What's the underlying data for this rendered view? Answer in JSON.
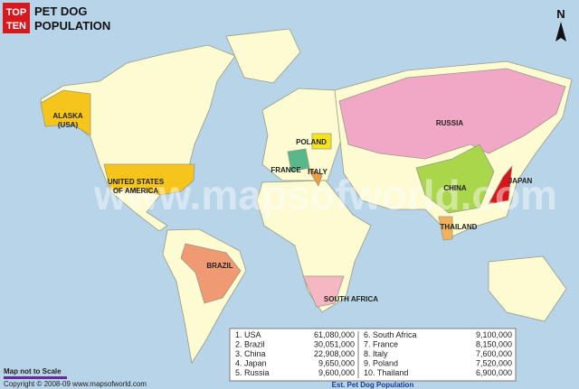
{
  "header": {
    "badge": [
      "TOP",
      "TEN"
    ],
    "title": [
      "PET DOG",
      "POPULATION"
    ]
  },
  "compass": "N",
  "watermark": "www.mapsofworld.com",
  "labels": {
    "alaska": [
      "ALASKA",
      "(USA)"
    ],
    "usa": [
      "UNITED STATES",
      "OF AMERICA"
    ],
    "brazil": "BRAZIL",
    "france": "FRANCE",
    "poland": "POLAND",
    "italy": "ITALY",
    "russia": "RUSSIA",
    "china": "CHINA",
    "japan": "JAPAN",
    "thailand": "THAILAND",
    "south_africa": "SOUTH AFRICA"
  },
  "table": {
    "rows": [
      [
        "1. USA",
        "61,080,000"
      ],
      [
        "2. Brazil",
        "30,051,000"
      ],
      [
        "3. China",
        "22,908,000"
      ],
      [
        "4. Japan",
        "9,650,000"
      ],
      [
        "5. Russia",
        "9,600,000"
      ],
      [
        "6. South Africa",
        "9,100,000"
      ],
      [
        "7. France",
        "8,150,000"
      ],
      [
        "8. Italy",
        "7,600,000"
      ],
      [
        "9. Poland",
        "7,520,000"
      ],
      [
        "10. Thailand",
        "6,900,000"
      ]
    ],
    "caption": "Est. Pet Dog Population"
  },
  "footer": {
    "note": "Map not to Scale",
    "copyright": "Copyright © 2008-09 www.mapsofworld.com"
  }
}
